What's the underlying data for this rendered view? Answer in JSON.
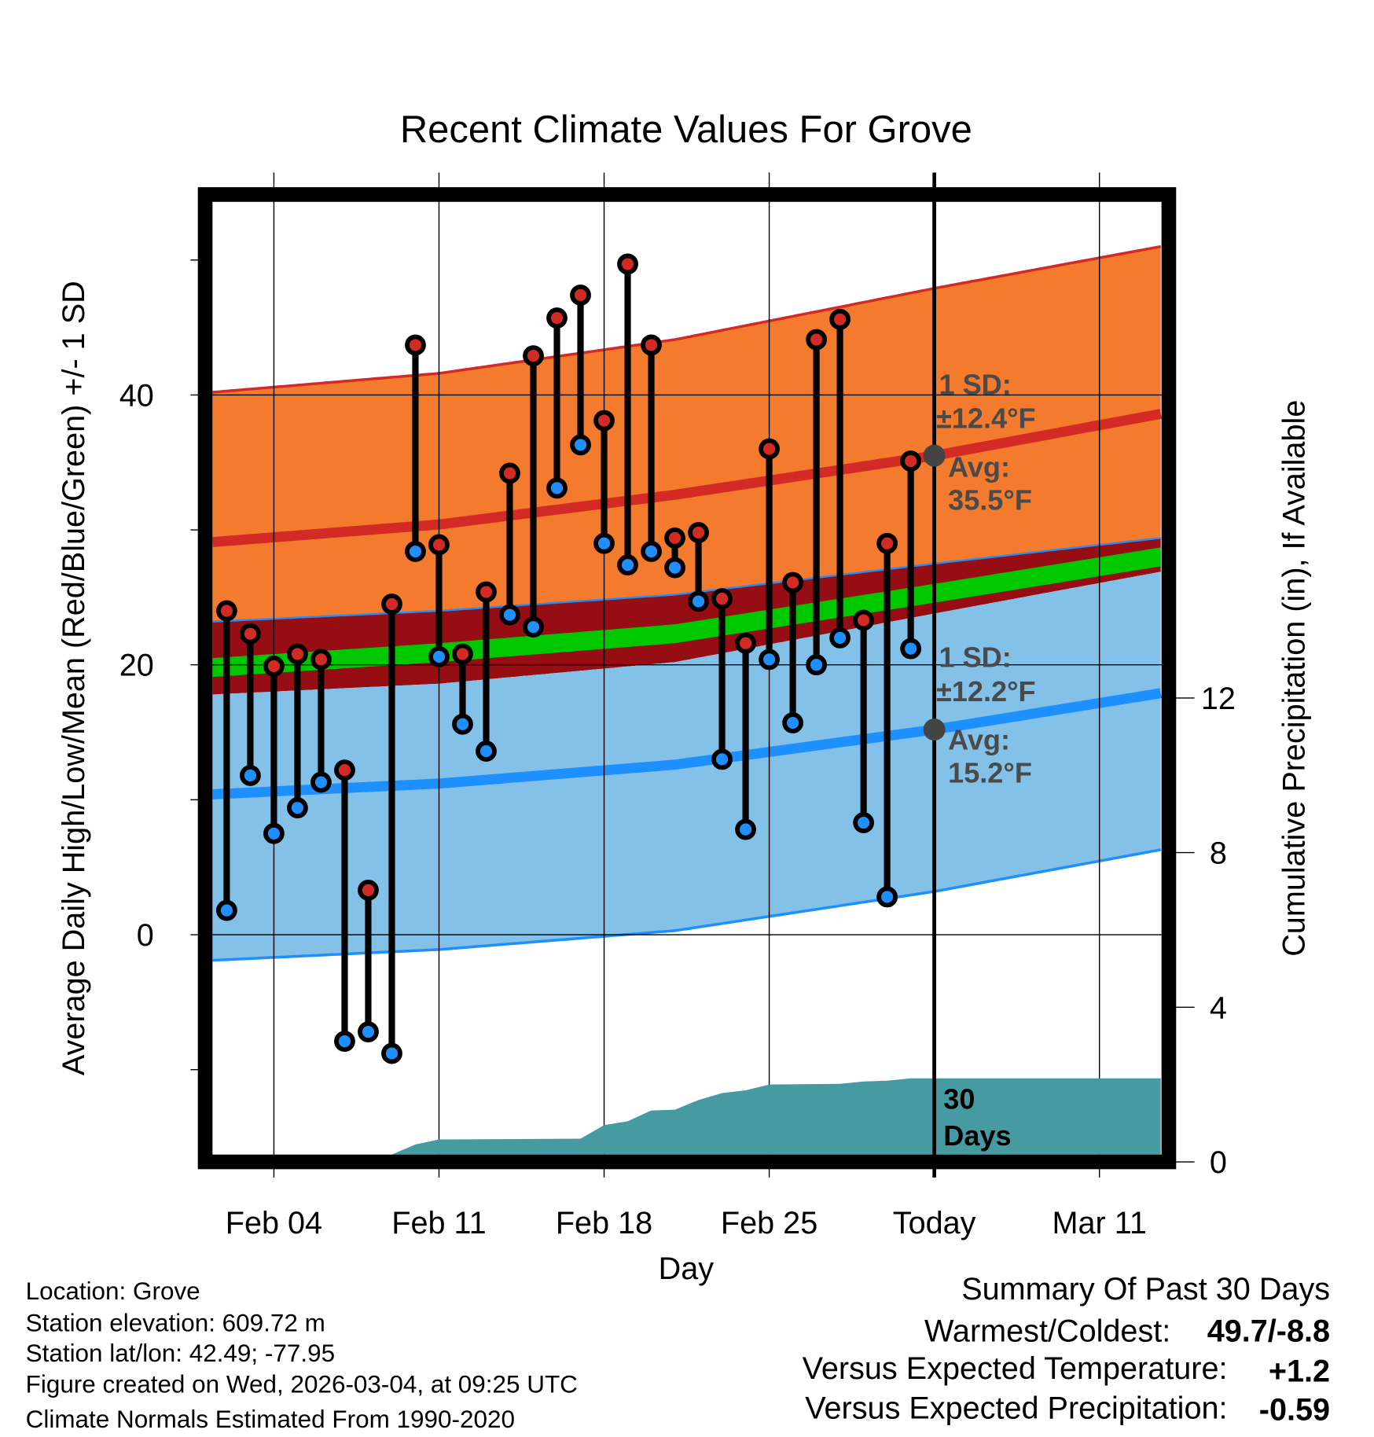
{
  "chart_data": {
    "type": "line",
    "title": "Recent Climate Values For Grove",
    "xlabel": "Day",
    "ylabel": "Average Daily High/Low/Mean (Red/Blue/Green) +/- 1 SD",
    "y2label": "Cumulative Precipitation (in), If Available",
    "x_note": "x values are day numbers where Feb 01 = 0",
    "xlim": [
      0.4,
      40.6
    ],
    "ylim": [
      -16.3,
      54.3
    ],
    "y2lim": [
      0,
      24.8
    ],
    "grid": true,
    "x_ticks": [
      {
        "x": 3,
        "label": "Feb 04"
      },
      {
        "x": 10,
        "label": "Feb 11"
      },
      {
        "x": 17,
        "label": "Feb 18"
      },
      {
        "x": 24,
        "label": "Feb 25"
      },
      {
        "x": 31,
        "label": "Today"
      },
      {
        "x": 38,
        "label": "Mar 11"
      }
    ],
    "y_ticks": [
      {
        "v": 0,
        "label": "0"
      },
      {
        "v": 20,
        "label": "20"
      },
      {
        "v": 40,
        "label": "40"
      }
    ],
    "y_minor_ticks": [
      -10,
      10,
      30,
      50
    ],
    "y2_ticks": [
      {
        "v": 0,
        "label": "0"
      },
      {
        "v": 4,
        "label": "4"
      },
      {
        "v": 8,
        "label": "8"
      },
      {
        "v": 12,
        "label": "12"
      }
    ],
    "daily": {
      "x": [
        1,
        2,
        3,
        4,
        5,
        6,
        7,
        8,
        9,
        10,
        11,
        12,
        13,
        14,
        15,
        16,
        17,
        18,
        19,
        20,
        21,
        22,
        23,
        24,
        25,
        26,
        27,
        28,
        29,
        30
      ],
      "high": [
        24.0,
        22.3,
        19.9,
        20.8,
        20.4,
        12.2,
        3.3,
        24.5,
        43.7,
        28.9,
        20.8,
        25.4,
        34.2,
        42.9,
        45.7,
        47.4,
        38.1,
        49.7,
        43.7,
        29.4,
        29.8,
        24.9,
        21.6,
        36.0,
        26.1,
        44.1,
        45.6,
        23.3,
        29.0,
        35.1
      ],
      "low": [
        1.8,
        11.8,
        7.5,
        9.4,
        11.3,
        -7.9,
        -7.2,
        -8.8,
        28.4,
        20.6,
        15.6,
        13.6,
        23.7,
        22.8,
        33.1,
        36.3,
        29.0,
        27.4,
        28.4,
        27.2,
        24.7,
        13.0,
        7.8,
        20.4,
        15.7,
        20.0,
        22.0,
        8.3,
        2.8,
        21.2
      ]
    },
    "normals": {
      "x": [
        0.4,
        10,
        20,
        31,
        40.6
      ],
      "high_upper": [
        40.2,
        41.6,
        44.1,
        47.9,
        51.0
      ],
      "high_mean": [
        29.1,
        30.4,
        32.6,
        35.5,
        38.6
      ],
      "high_lower": [
        23.2,
        24.0,
        25.2,
        27.5,
        29.4
      ],
      "mean": [
        19.8,
        20.9,
        22.3,
        25.3,
        28.0
      ],
      "low_upper": [
        17.8,
        18.6,
        20.2,
        23.8,
        26.9
      ],
      "low_mean": [
        10.4,
        11.2,
        12.6,
        15.2,
        17.9
      ],
      "low_lower": [
        -1.9,
        -1.1,
        0.3,
        3.2,
        6.3
      ]
    },
    "precip_cumulative": {
      "x": [
        0.4,
        7.5,
        8,
        9,
        10,
        16,
        17,
        18,
        19,
        20,
        21,
        22,
        23,
        24,
        27,
        28,
        29,
        30,
        40.6
      ],
      "values": [
        0,
        0,
        0.05,
        0.45,
        0.58,
        0.6,
        0.95,
        1.05,
        1.33,
        1.35,
        1.6,
        1.78,
        1.85,
        2.0,
        2.02,
        2.08,
        2.1,
        2.16,
        2.16
      ]
    },
    "annotations": {
      "high_sd_line1": "1 SD:",
      "high_sd_line2": "±12.4°F",
      "high_avg_line1": "Avg:",
      "high_avg_line2": "35.5°F",
      "low_sd_line1": "1 SD:",
      "low_sd_line2": "±12.2°F",
      "low_avg_line1": "Avg:",
      "low_avg_line2": "15.2°F",
      "precip_line1": "30",
      "precip_line2": "Days",
      "today_high_avg": 35.5,
      "today_low_avg": 15.2
    },
    "colors": {
      "high_band": "#f47a2e",
      "high_line": "#d42a25",
      "mid_band": "#960e14",
      "mean_band": "#00c800",
      "low_band": "#83c1e8",
      "low_line": "#1e8fff",
      "precip": "#469aa2",
      "high_dot": "#d42a25",
      "low_dot": "#1e8fff"
    }
  },
  "footer": {
    "location": "Location: Grove",
    "elevation": "Station elevation: 609.72 m",
    "latlon": "Station lat/lon: 42.49; -77.95",
    "created": "Figure created on Wed, 2026-03-04, at 09:25 UTC",
    "normals": "Climate Normals Estimated From 1990-2020"
  },
  "summary": {
    "title": "Summary Of Past 30 Days",
    "warmest_label": "Warmest/Coldest:",
    "warmest_value": "49.7/-8.8",
    "temp_label": "Versus Expected Temperature:",
    "temp_value": "+1.2",
    "temp_color": "#d42a25",
    "precip_label": "Versus Expected Precipitation:",
    "precip_value": "-0.59",
    "precip_color": "#a0522d"
  }
}
